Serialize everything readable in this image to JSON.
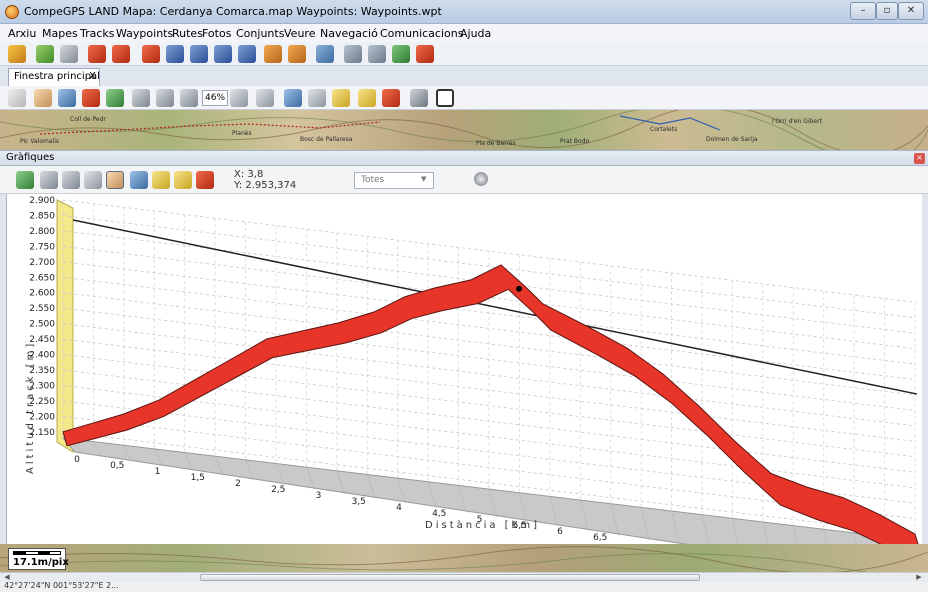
{
  "window": {
    "title": "CompeGPS LAND Mapa: Cerdanya Comarca.map Waypoints: Waypoints.wpt",
    "min": "–",
    "max": "▫",
    "close": "✕"
  },
  "menu": [
    "Arxiu",
    "Mapes",
    "Tracks",
    "Waypoints",
    "Rutes",
    "Fotos",
    "Conjunts",
    "Veure",
    "Navegació",
    "Comunicacions",
    "Ajuda"
  ],
  "tabs": [
    {
      "label": "Finestra principal",
      "close": "X"
    }
  ],
  "map_toolbar": {
    "zoom_value": "46%"
  },
  "map_labels": [
    "Coll de Pedr",
    "Pic Valomalis",
    "Planès",
    "Bosc de Pallaresa",
    "Pla de Barrès",
    "Prat Bodo",
    "l'Orri d'en Gibert",
    "Cortalets",
    "Dolmen de Sarija"
  ],
  "graphs_panel": {
    "title": "Gràfiques",
    "close": "×",
    "cursor_x": "X: 3,8",
    "cursor_y": "Y: 2.953,374",
    "filter_value": "Totes"
  },
  "chart_data": {
    "type": "area",
    "xlabel": "Distància [km]",
    "ylabel": "Altitud track [m]",
    "x_ticks": [
      "0",
      "0,5",
      "1",
      "1,5",
      "2",
      "2,5",
      "3",
      "3,5",
      "4",
      "4,5",
      "5",
      "5,5",
      "6",
      "6,5"
    ],
    "y_ticks": [
      "2.150",
      "2.200",
      "2.250",
      "2.300",
      "2.350",
      "2.400",
      "2.450",
      "2.500",
      "2.550",
      "2.600",
      "2.650",
      "2.700",
      "2.750",
      "2.800",
      "2.850",
      "2.900"
    ],
    "xlim": [
      0,
      7.1
    ],
    "ylim": [
      2130,
      2900
    ],
    "series": [
      {
        "color": "#e8352a",
        "x": [
          0,
          0.25,
          0.5,
          0.8,
          1.1,
          1.4,
          1.7,
          2.0,
          2.3,
          2.6,
          2.85,
          3.1,
          3.4,
          3.65,
          3.85,
          4.0,
          4.2,
          4.4,
          4.7,
          5.0,
          5.3,
          5.6,
          5.9,
          6.2,
          6.5,
          6.8,
          7.1
        ],
        "y": [
          2150,
          2190,
          2230,
          2290,
          2370,
          2450,
          2530,
          2570,
          2610,
          2660,
          2720,
          2760,
          2800,
          2860,
          2800,
          2750,
          2720,
          2690,
          2640,
          2570,
          2480,
          2380,
          2290,
          2260,
          2240,
          2200,
          2150
        ]
      }
    ],
    "cursor": {
      "x": 3.8,
      "y": 2790
    },
    "grid": true
  },
  "scale": {
    "label": "17.1m/pix"
  },
  "status": {
    "coords": "42°27'24\"N 001°53'27\"E  2..."
  }
}
